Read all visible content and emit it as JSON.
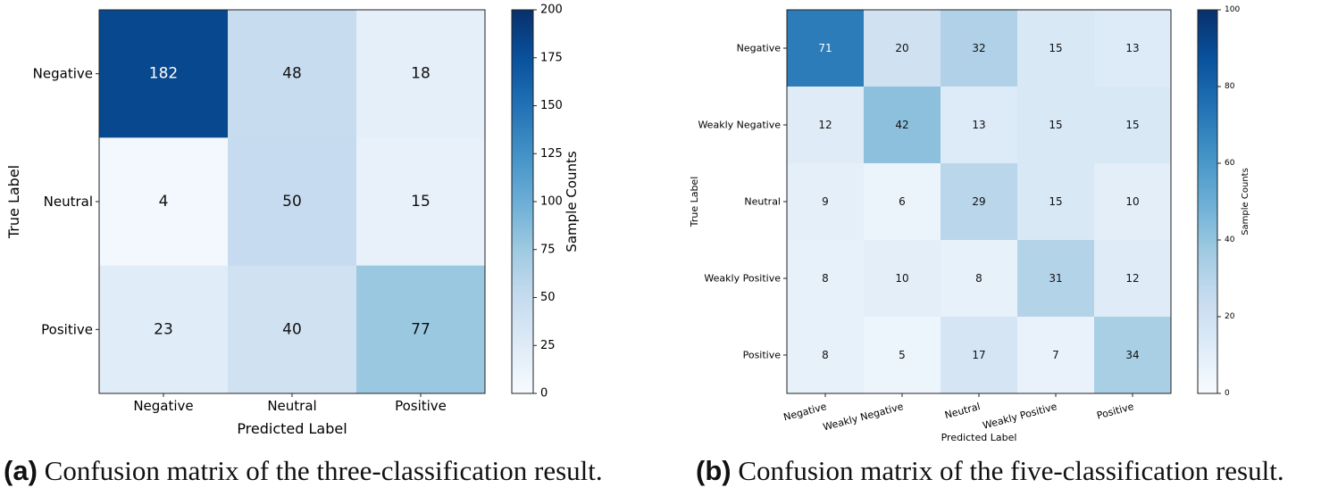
{
  "chart_data": [
    {
      "type": "heatmap",
      "title": "",
      "xlabel": "Predicted Label",
      "ylabel": "True Label",
      "categories": [
        "Negative",
        "Neutral",
        "Positive"
      ],
      "rows": [
        "Negative",
        "Neutral",
        "Positive"
      ],
      "values": [
        [
          182,
          48,
          18
        ],
        [
          4,
          50,
          15
        ],
        [
          23,
          40,
          77
        ]
      ],
      "colorbar": {
        "label": "Sample Counts",
        "range": [
          0,
          200
        ],
        "ticks": [
          "0",
          "25",
          "50",
          "75",
          "100",
          "125",
          "150",
          "175",
          "200"
        ]
      },
      "colormap": "Blues",
      "caption_tag": "(a)",
      "caption_text": "Confusion matrix of the three-classification result."
    },
    {
      "type": "heatmap",
      "title": "",
      "xlabel": "Predicted Label",
      "ylabel": "True Label",
      "categories": [
        "Negative",
        "Weakly Negative",
        "Neutral",
        "Weakly Positive",
        "Positive"
      ],
      "rows": [
        "Negative",
        "Weakly Negative",
        "Neutral",
        "Weakly Positive",
        "Positive"
      ],
      "values": [
        [
          71,
          20,
          32,
          15,
          13
        ],
        [
          12,
          42,
          13,
          15,
          15
        ],
        [
          9,
          6,
          29,
          15,
          10
        ],
        [
          8,
          10,
          8,
          31,
          12
        ],
        [
          8,
          5,
          17,
          7,
          34
        ]
      ],
      "colorbar": {
        "label": "Sample Counts",
        "range": [
          0,
          100
        ],
        "ticks": [
          "0",
          "20",
          "40",
          "60",
          "80",
          "100"
        ]
      },
      "colormap": "Blues",
      "caption_tag": "(b)",
      "caption_text": "Confusion matrix of the five-classification result."
    }
  ]
}
